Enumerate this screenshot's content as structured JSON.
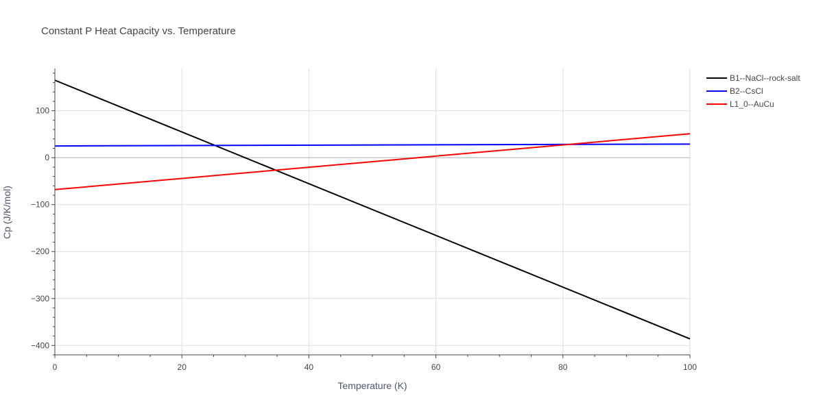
{
  "chart_data": {
    "type": "line",
    "title": "Constant P Heat Capacity vs. Temperature",
    "xlabel": "Temperature (K)",
    "ylabel": "Cp (J/K/mol)",
    "xlim": [
      0,
      100
    ],
    "ylim": [
      -420,
      190
    ],
    "x_ticks": [
      0,
      20,
      40,
      60,
      80,
      100
    ],
    "x_tick_labels": [
      "0",
      "20",
      "40",
      "60",
      "80",
      "100"
    ],
    "y_ticks": [
      100,
      0,
      -100,
      -200,
      -300,
      -400
    ],
    "y_tick_labels": [
      "100",
      "0",
      "−100",
      "−200",
      "−300",
      "−400"
    ],
    "grid": true,
    "legend_position": "top-right",
    "series": [
      {
        "name": "B1--NaCl--rock-salt",
        "color": "#000000",
        "x": [
          0,
          100
        ],
        "y": [
          165,
          -386
        ]
      },
      {
        "name": "B2--CsCl",
        "color": "#0000ff",
        "x": [
          0,
          100
        ],
        "y": [
          25,
          29
        ]
      },
      {
        "name": "L1_0--AuCu",
        "color": "#ff0000",
        "x": [
          0,
          100
        ],
        "y": [
          -68,
          51
        ]
      }
    ]
  }
}
